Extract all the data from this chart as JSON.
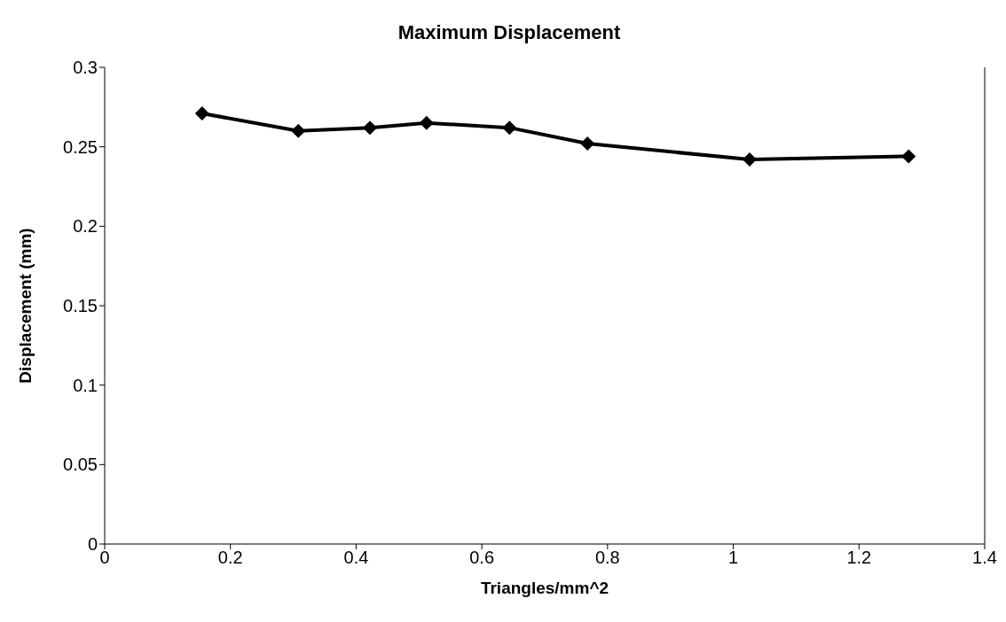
{
  "chart_data": {
    "type": "line",
    "title": "Maximum Displacement",
    "xlabel": "Triangles/mm^2",
    "ylabel": "Displacement (mm)",
    "x": [
      0.155,
      0.308,
      0.422,
      0.512,
      0.644,
      0.768,
      1.026,
      1.279
    ],
    "series": [
      {
        "color": "#000000",
        "values": [
          0.271,
          0.26,
          0.262,
          0.265,
          0.262,
          0.252,
          0.242,
          0.244
        ]
      }
    ],
    "xlim": [
      0,
      1.4
    ],
    "xticks": [
      0,
      0.2,
      0.4,
      0.6,
      0.8,
      1,
      1.2,
      1.4
    ],
    "ylim": [
      0,
      0.3
    ],
    "yticks": [
      0,
      0.05,
      0.1,
      0.15,
      0.2,
      0.25,
      0.3
    ],
    "grid": false,
    "legend": false,
    "marker": "diamond",
    "line_style": "solid"
  }
}
